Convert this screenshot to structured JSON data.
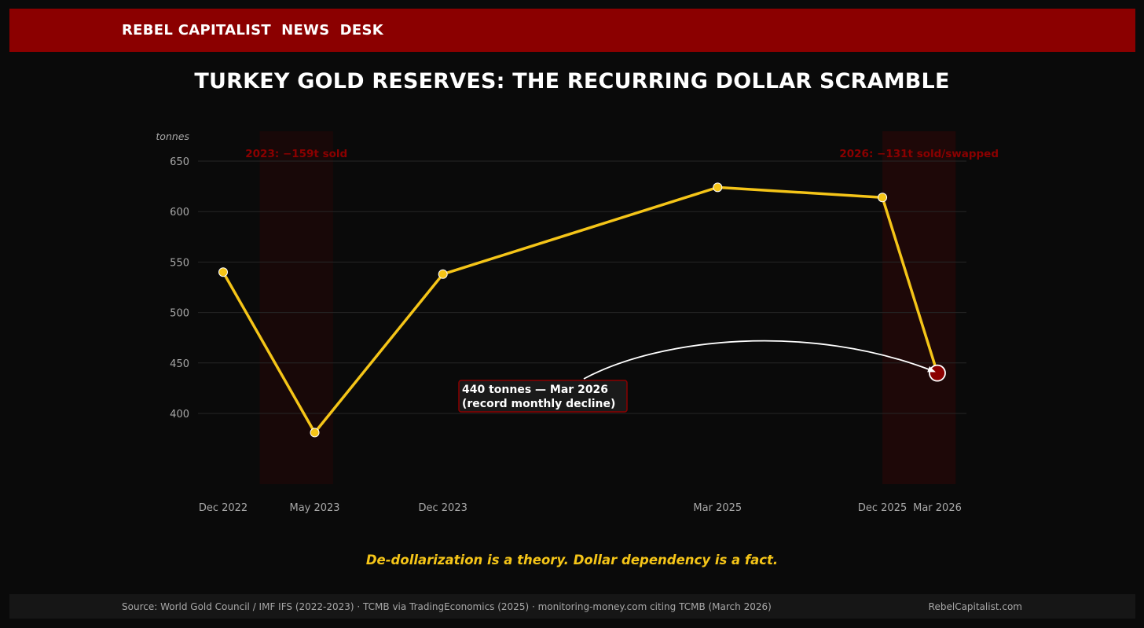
{
  "header": {
    "title": "REBEL CAPITALIST  NEWS  DESK"
  },
  "chart_title": "TURKEY GOLD RESERVES: THE RECURRING DOLLAR SCRAMBLE",
  "tagline": "De-dollarization is a theory. Dollar dependency is a fact.",
  "footer": {
    "source": "Source: World Gold Council / IMF IFS (2022-2023)  ·  TCMB via TradingEconomics (2025)  ·  monitoring-money.com citing TCMB (March 2026)",
    "brand": "RebelCapitalist.com"
  },
  "colors": {
    "line": "#f5c518",
    "accent": "#8b0000",
    "band": "#1e0808",
    "label_red": "#8b0000",
    "grid": "#262626",
    "tick": "#a8a8a8"
  },
  "chart_data": {
    "type": "line",
    "ylabel": "tonnes",
    "yticks": [
      400,
      450,
      500,
      550,
      600,
      650
    ],
    "ylim": [
      330,
      680
    ],
    "grid": true,
    "points": [
      {
        "label": "Dec 2022",
        "date": "2022-12",
        "value": 540
      },
      {
        "label": "May 2023",
        "date": "2023-05",
        "value": 381
      },
      {
        "label": "Dec 2023",
        "date": "2023-12",
        "value": 538
      },
      {
        "label": "Mar 2025",
        "date": "2025-03",
        "value": 624
      },
      {
        "label": "Dec 2025",
        "date": "2025-12",
        "value": 614
      },
      {
        "label": "Mar 2026",
        "date": "2026-03",
        "value": 440
      }
    ],
    "highlight_point": "Mar 2026",
    "shaded_periods": [
      {
        "label": "2023: −159t sold",
        "from": "2023-02",
        "to": "2023-06"
      },
      {
        "label": "2026: −131t sold/swapped",
        "from": "2025-12",
        "to": "2026-04"
      }
    ],
    "annotation": {
      "line1": "440 tonnes — Mar 2026",
      "line2": "(record monthly decline)",
      "target": "Mar 2026"
    }
  }
}
